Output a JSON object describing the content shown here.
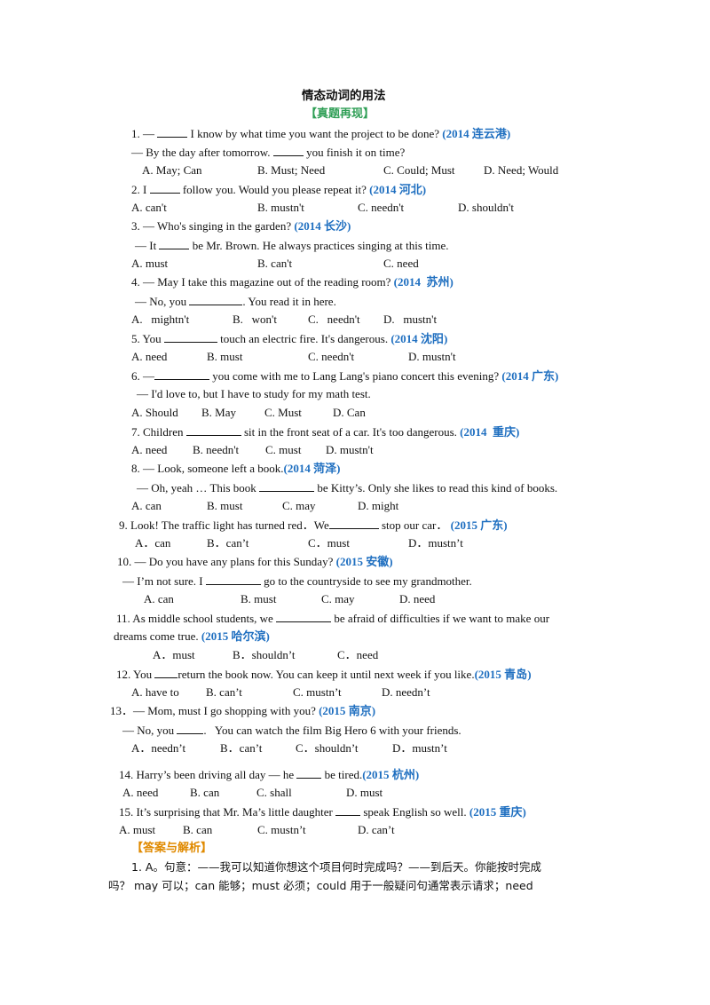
{
  "colors": {
    "source": "#1f6fc0",
    "section_green": "#2e9e55",
    "section_orange": "#e08a00"
  },
  "title": "情态动词的用法",
  "section1": "【真题再现】",
  "questions": [
    {
      "id": 1,
      "q": [
        "1. —",
        " I know by what time you want the project to be done? "
      ],
      "src": [
        "(2014 ",
        "连云港",
        ")"
      ],
      "q2": [
        "— By the day after tomorrow.",
        " you finish it on time?"
      ],
      "opts": [
        "A. May; Can",
        "B. Must; Need",
        "C. Could; Must",
        "D. Need; Would"
      ]
    },
    {
      "id": 2,
      "q": [
        "2. I",
        " follow you. Would you please repeat it? "
      ],
      "src": [
        "(2014 ",
        "河北",
        ")"
      ],
      "opts": [
        "A. can't",
        "B. mustn't",
        "C. needn't",
        "D. shouldn't"
      ]
    },
    {
      "id": 3,
      "q": [
        "3. — Who's singing in the garden? "
      ],
      "src": [
        "(2014 ",
        "长沙",
        ")"
      ],
      "q2": [
        "— It",
        " be Mr. Brown. He always practices singing at this time."
      ],
      "opts": [
        "A. must",
        "B. can't",
        "C. need"
      ]
    },
    {
      "id": 4,
      "q": [
        "4. — May I take this magazine out of the reading room? "
      ],
      "src": [
        "(2014  ",
        "苏州",
        ")"
      ],
      "q2": [
        "— No, you",
        ". You read it in here."
      ],
      "opts": [
        "A.   mightn't",
        "B.   won't",
        "C.   needn't",
        "D.   mustn't"
      ]
    },
    {
      "id": 5,
      "q": [
        "5. You",
        " touch an electric fire. It's dangerous. "
      ],
      "src": [
        "(2014 ",
        "沈阳",
        ")"
      ],
      "opts": [
        "A. need",
        "B. must",
        "C. needn't",
        "D. mustn't"
      ]
    },
    {
      "id": 6,
      "q": [
        "6. —",
        " you come with me to Lang Lang's piano concert this evening? "
      ],
      "src": [
        "(2014 ",
        "广东",
        ")"
      ],
      "q2": [
        "— I'd love to, but I have to study for my math test."
      ],
      "opts": [
        "A. Should",
        "B. May",
        "C. Must",
        "D. Can"
      ]
    },
    {
      "id": 7,
      "q": [
        "7. Children",
        " sit in the front seat of a car. It's too dangerous. "
      ],
      "src": [
        "(2014  ",
        "重庆",
        ")"
      ],
      "opts": [
        "A. need",
        "B. needn't",
        "C. must",
        "D. mustn't"
      ]
    },
    {
      "id": 8,
      "q": [
        "8. — Look, someone left a book."
      ],
      "src": [
        "(2014 ",
        "菏泽",
        ")"
      ],
      "q2": [
        "— Oh, yeah … This book",
        " be Kitty’s. Only she likes to read this kind of books."
      ],
      "opts": [
        "A. can",
        "B. must",
        "C. may",
        "D. might"
      ]
    },
    {
      "id": 9,
      "q": [
        "9. Look! The traffic light has turned red．We",
        " stop our car． "
      ],
      "src": [
        "(2015 ",
        "广东",
        ")"
      ],
      "opts": [
        "A．can",
        "B．can’t",
        "C．must",
        "D．mustn’t"
      ]
    },
    {
      "id": 10,
      "q": [
        "10. — Do you have any plans for this Sunday? "
      ],
      "src": [
        "(2015 ",
        "安徽",
        ")"
      ],
      "q2": [
        "— I’m not sure. I",
        " go to the countryside to see my grandmother."
      ],
      "opts": [
        "A. can",
        "B. must",
        "C. may",
        "D. need"
      ]
    },
    {
      "id": 11,
      "q": [
        "11. As middle school students, we",
        " be afraid of difficulties if we want to make our"
      ],
      "q_cont": "dreams come true. ",
      "src": [
        "(2015 ",
        "哈尔滨",
        ")"
      ],
      "opts": [
        "A．must",
        "B．shouldn’t",
        "C．need"
      ]
    },
    {
      "id": 12,
      "q": [
        "12. You ",
        "return the book now. You can keep it until next week if you like."
      ],
      "src": [
        "(2015 ",
        "青岛",
        ")"
      ],
      "opts": [
        "A. have to",
        "B. can’t",
        "C. mustn’t",
        "D. needn’t"
      ]
    },
    {
      "id": 13,
      "q": [
        "13．— Mom, must I go shopping with you? "
      ],
      "src": [
        "(2015 ",
        "南京",
        ")"
      ],
      "q2": [
        "— No, you",
        ".   You can watch the film Big Hero 6 with your friends."
      ],
      "opts": [
        "A．needn’t",
        "B．can’t",
        "C．shouldn’t",
        "D．mustn’t"
      ]
    },
    {
      "id": 14,
      "q": [
        "14. Harry’s been driving all day — he",
        " be tired."
      ],
      "src": [
        "(2015 ",
        "杭州",
        ")"
      ],
      "opts": [
        "A. need",
        "B. can",
        "C. shall",
        "D. must"
      ]
    },
    {
      "id": 15,
      "q": [
        "15. It’s surprising that Mr. Ma’s little daughter",
        " speak English so well. "
      ],
      "src": [
        "(2015 ",
        "重庆",
        ")"
      ],
      "opts": [
        "A. must",
        "B. can",
        "C. mustn’t",
        "D. can’t"
      ]
    }
  ],
  "section2": "【答案与解析】",
  "answer_lines": [
    "1. A。句意：——我可以知道你想这个项目何时完成吗？——到后天。你能按时完成",
    "吗？ may 可以；can 能够；must 必须；could 用于一般疑问句通常表示请求；need"
  ]
}
